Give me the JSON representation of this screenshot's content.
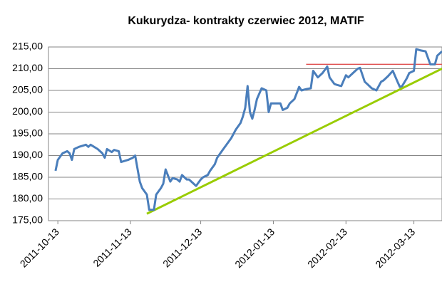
{
  "chart_data": {
    "type": "line",
    "title": "Kukurydza- kontrakty czerwiec 2012, MATIF",
    "x": [
      "2011-10-12",
      "2011-10-13",
      "2011-10-15",
      "2011-10-17",
      "2011-10-18",
      "2011-10-19",
      "2011-10-20",
      "2011-10-22",
      "2011-10-25",
      "2011-10-26",
      "2011-10-27",
      "2011-10-30",
      "2011-11-01",
      "2011-11-02",
      "2011-11-03",
      "2011-11-05",
      "2011-11-06",
      "2011-11-08",
      "2011-11-09",
      "2011-11-12",
      "2011-11-14",
      "2011-11-15",
      "2011-11-17",
      "2011-11-18",
      "2011-11-20",
      "2011-11-21",
      "2011-11-23",
      "2011-11-24",
      "2011-11-26",
      "2011-11-27",
      "2011-11-28",
      "2011-11-30",
      "2011-12-01",
      "2011-12-03",
      "2011-12-04",
      "2011-12-05",
      "2011-12-07",
      "2011-12-08",
      "2011-12-10",
      "2011-12-11",
      "2011-12-13",
      "2011-12-14",
      "2011-12-16",
      "2011-12-17",
      "2011-12-19",
      "2011-12-20",
      "2011-12-22",
      "2011-12-24",
      "2011-12-26",
      "2011-12-28",
      "2011-12-30",
      "2011-12-31",
      "2012-01-01",
      "2012-01-02",
      "2012-01-03",
      "2012-01-04",
      "2012-01-05",
      "2012-01-06",
      "2012-01-08",
      "2012-01-10",
      "2012-01-11",
      "2012-01-12",
      "2012-01-14",
      "2012-01-16",
      "2012-01-17",
      "2012-01-19",
      "2012-01-20",
      "2012-01-22",
      "2012-01-24",
      "2012-01-25",
      "2012-01-27",
      "2012-01-29",
      "2012-01-30",
      "2012-02-01",
      "2012-02-03",
      "2012-02-05",
      "2012-02-06",
      "2012-02-08",
      "2012-02-09",
      "2012-02-11",
      "2012-02-13",
      "2012-02-14",
      "2012-02-16",
      "2012-02-18",
      "2012-02-19",
      "2012-02-21",
      "2012-02-22",
      "2012-02-24",
      "2012-02-26",
      "2012-02-28",
      "2012-02-29",
      "2012-03-02",
      "2012-03-04",
      "2012-03-06",
      "2012-03-07",
      "2012-03-08",
      "2012-03-10",
      "2012-03-11",
      "2012-03-13",
      "2012-03-14",
      "2012-03-16",
      "2012-03-18",
      "2012-03-20",
      "2012-03-22",
      "2012-03-23",
      "2012-03-25"
    ],
    "series": [
      {
        "color": "#4a7ebb",
        "values": [
          186.5,
          189,
          190.5,
          191,
          190.5,
          189,
          191.5,
          192,
          192.5,
          192,
          192.5,
          191.5,
          190.5,
          189.5,
          191.5,
          190.8,
          191.3,
          191,
          188.5,
          189,
          189.5,
          190,
          184,
          182.5,
          181,
          177.5,
          177.5,
          181,
          182.5,
          183.5,
          186.8,
          184,
          184.8,
          184.5,
          184,
          185.5,
          184.5,
          184.5,
          183.5,
          183,
          184.5,
          185,
          185.5,
          186.5,
          188,
          189.5,
          191,
          192.5,
          194,
          196,
          197.5,
          199,
          201,
          206,
          200,
          198.5,
          200.5,
          203,
          205.5,
          205,
          200,
          202,
          202,
          202,
          200.5,
          201,
          202,
          203,
          205.8,
          205,
          205.3,
          205.5,
          209.5,
          208,
          209,
          210.5,
          208,
          206.5,
          206.3,
          206,
          208.5,
          208,
          209,
          210,
          210.2,
          207,
          206.5,
          205.5,
          205,
          207,
          207.3,
          208.3,
          209.5,
          207,
          205.8,
          206,
          207.8,
          209,
          209.5,
          214.5,
          214.2,
          214,
          211,
          211,
          213,
          214
        ]
      }
    ],
    "lines": [
      {
        "color": "#99cc00",
        "x": [
          "2011-11-20",
          "2012-03-25"
        ],
        "y": [
          176.6,
          210
        ]
      },
      {
        "color": "#e05050",
        "x": [
          "2012-01-27",
          "2012-03-25"
        ],
        "y": [
          211,
          211
        ]
      }
    ],
    "xlim": [
      "2011-10-09",
      "2012-03-25"
    ],
    "xticks": [
      "2011-10-13",
      "2011-11-13",
      "2011-12-13",
      "2012-01-13",
      "2012-02-13",
      "2012-03-13"
    ],
    "ylim": [
      175,
      215
    ],
    "yticks": [
      {
        "value": 175,
        "label": "175,00"
      },
      {
        "value": 180,
        "label": "180,00"
      },
      {
        "value": 185,
        "label": "185,00"
      },
      {
        "value": 190,
        "label": "190,00"
      },
      {
        "value": 195,
        "label": "195,00"
      },
      {
        "value": 200,
        "label": "200,00"
      },
      {
        "value": 205,
        "label": "205,00"
      },
      {
        "value": 210,
        "label": "210,00"
      },
      {
        "value": 215,
        "label": "215,00"
      }
    ],
    "grid": true
  }
}
